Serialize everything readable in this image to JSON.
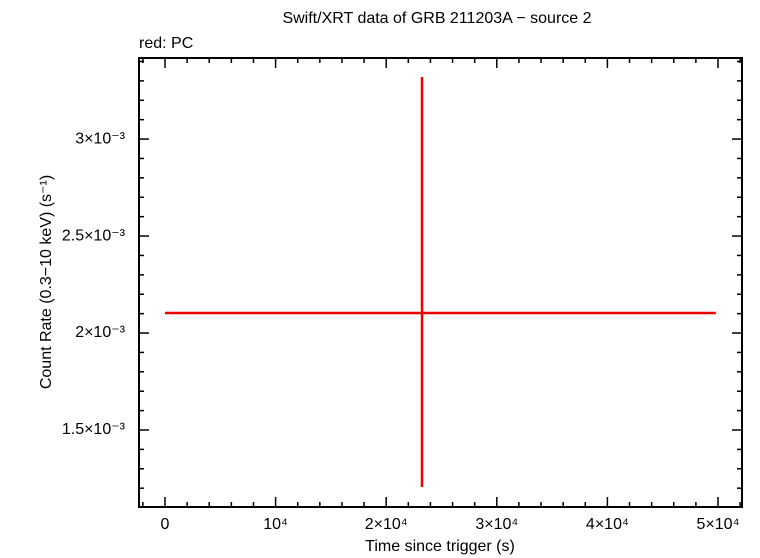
{
  "chart_data": {
    "type": "errorbar",
    "title": "Swift/XRT data of GRB 211203A − source 2",
    "subtitle": "red: PC",
    "xlabel": "Time since trigger (s)",
    "ylabel": "Count Rate (0.3−10 keV) (s⁻¹)",
    "series": [
      {
        "name": "PC",
        "color": "#ee0000",
        "x": [
          23240
        ],
        "xerr_minus": [
          23240
        ],
        "xerr_plus": [
          26560
        ],
        "values": [
          0.002103
        ],
        "yerr_minus": [
          0.000897
        ],
        "yerr_plus": [
          0.001217
        ]
      }
    ],
    "xlim": [
      -2350,
      52170
    ],
    "ylim": [
      0.001103,
      0.003418
    ],
    "xticks": [
      0,
      {
        "value": 10000,
        "label": "10⁴"
      },
      {
        "value": 20000,
        "label": "2×10⁴"
      },
      {
        "value": 30000,
        "label": "3×10⁴"
      },
      {
        "value": 40000,
        "label": "4×10⁴"
      },
      {
        "value": 50000,
        "label": "5×10⁴"
      }
    ],
    "yticks": [
      {
        "value": 0.0015,
        "label": "1.5×10⁻³"
      },
      {
        "value": 0.002,
        "label": "2×10⁻³"
      },
      {
        "value": 0.0025,
        "label": "2.5×10⁻³"
      },
      {
        "value": 0.003,
        "label": "3×10⁻³"
      }
    ],
    "xminorticks": [
      -2000,
      2000,
      4000,
      6000,
      8000,
      12000,
      14000,
      16000,
      18000,
      22000,
      24000,
      26000,
      28000,
      32000,
      34000,
      36000,
      38000,
      42000,
      44000,
      46000,
      48000,
      52000
    ],
    "yminorticks": [
      0.0012,
      0.0013,
      0.0014,
      0.0016,
      0.0017,
      0.0018,
      0.0019,
      0.0021,
      0.0022,
      0.0023,
      0.0024,
      0.0026,
      0.0027,
      0.0028,
      0.0029,
      0.0031,
      0.0032,
      0.0033,
      0.0034
    ]
  }
}
